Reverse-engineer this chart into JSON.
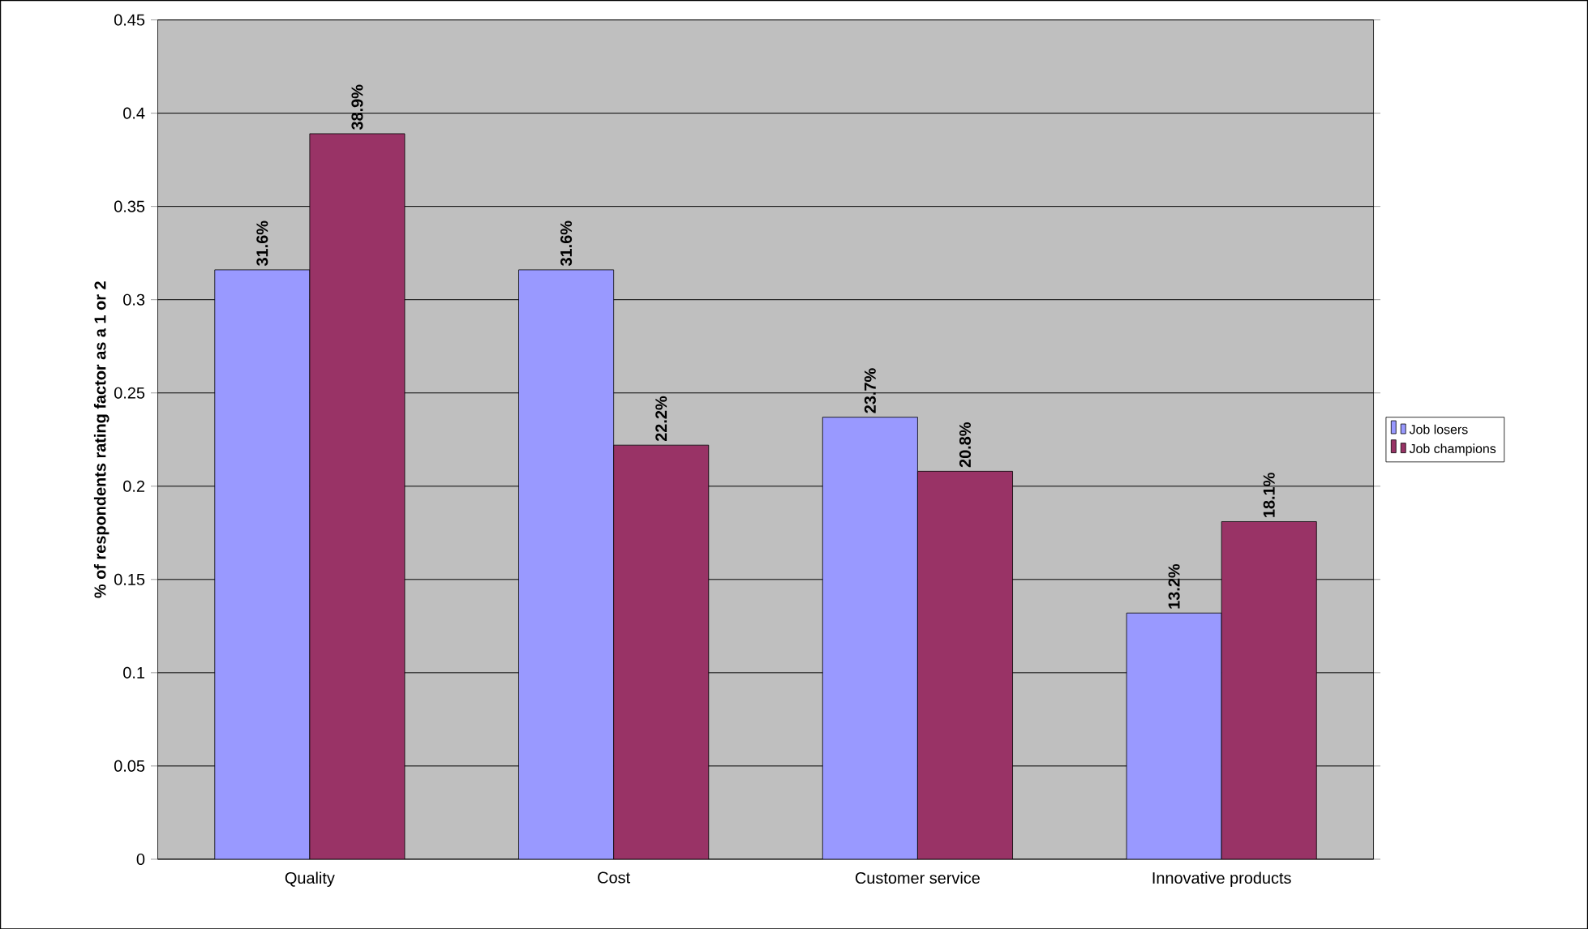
{
  "chart_data": {
    "type": "bar",
    "ylabel": "% of respondents rating factor as a 1 or 2",
    "categories": [
      "Quality",
      "Cost",
      "Customer service",
      "Innovative products"
    ],
    "series": [
      {
        "name": "Job losers",
        "color": "#9999ff",
        "values": [
          0.316,
          0.316,
          0.237,
          0.132
        ],
        "value_labels": [
          "31.6%",
          "31.6%",
          "23.7%",
          "13.2%"
        ]
      },
      {
        "name": "Job champions",
        "color": "#993366",
        "values": [
          0.389,
          0.222,
          0.208,
          0.181
        ],
        "value_labels": [
          "38.9%",
          "22.2%",
          "20.8%",
          "18.1%"
        ]
      }
    ],
    "ylim": [
      0,
      0.45
    ],
    "yticks": [
      0,
      0.05,
      0.1,
      0.15,
      0.2,
      0.25,
      0.3,
      0.35,
      0.4,
      0.45
    ],
    "grid": "y",
    "legend": "right"
  }
}
